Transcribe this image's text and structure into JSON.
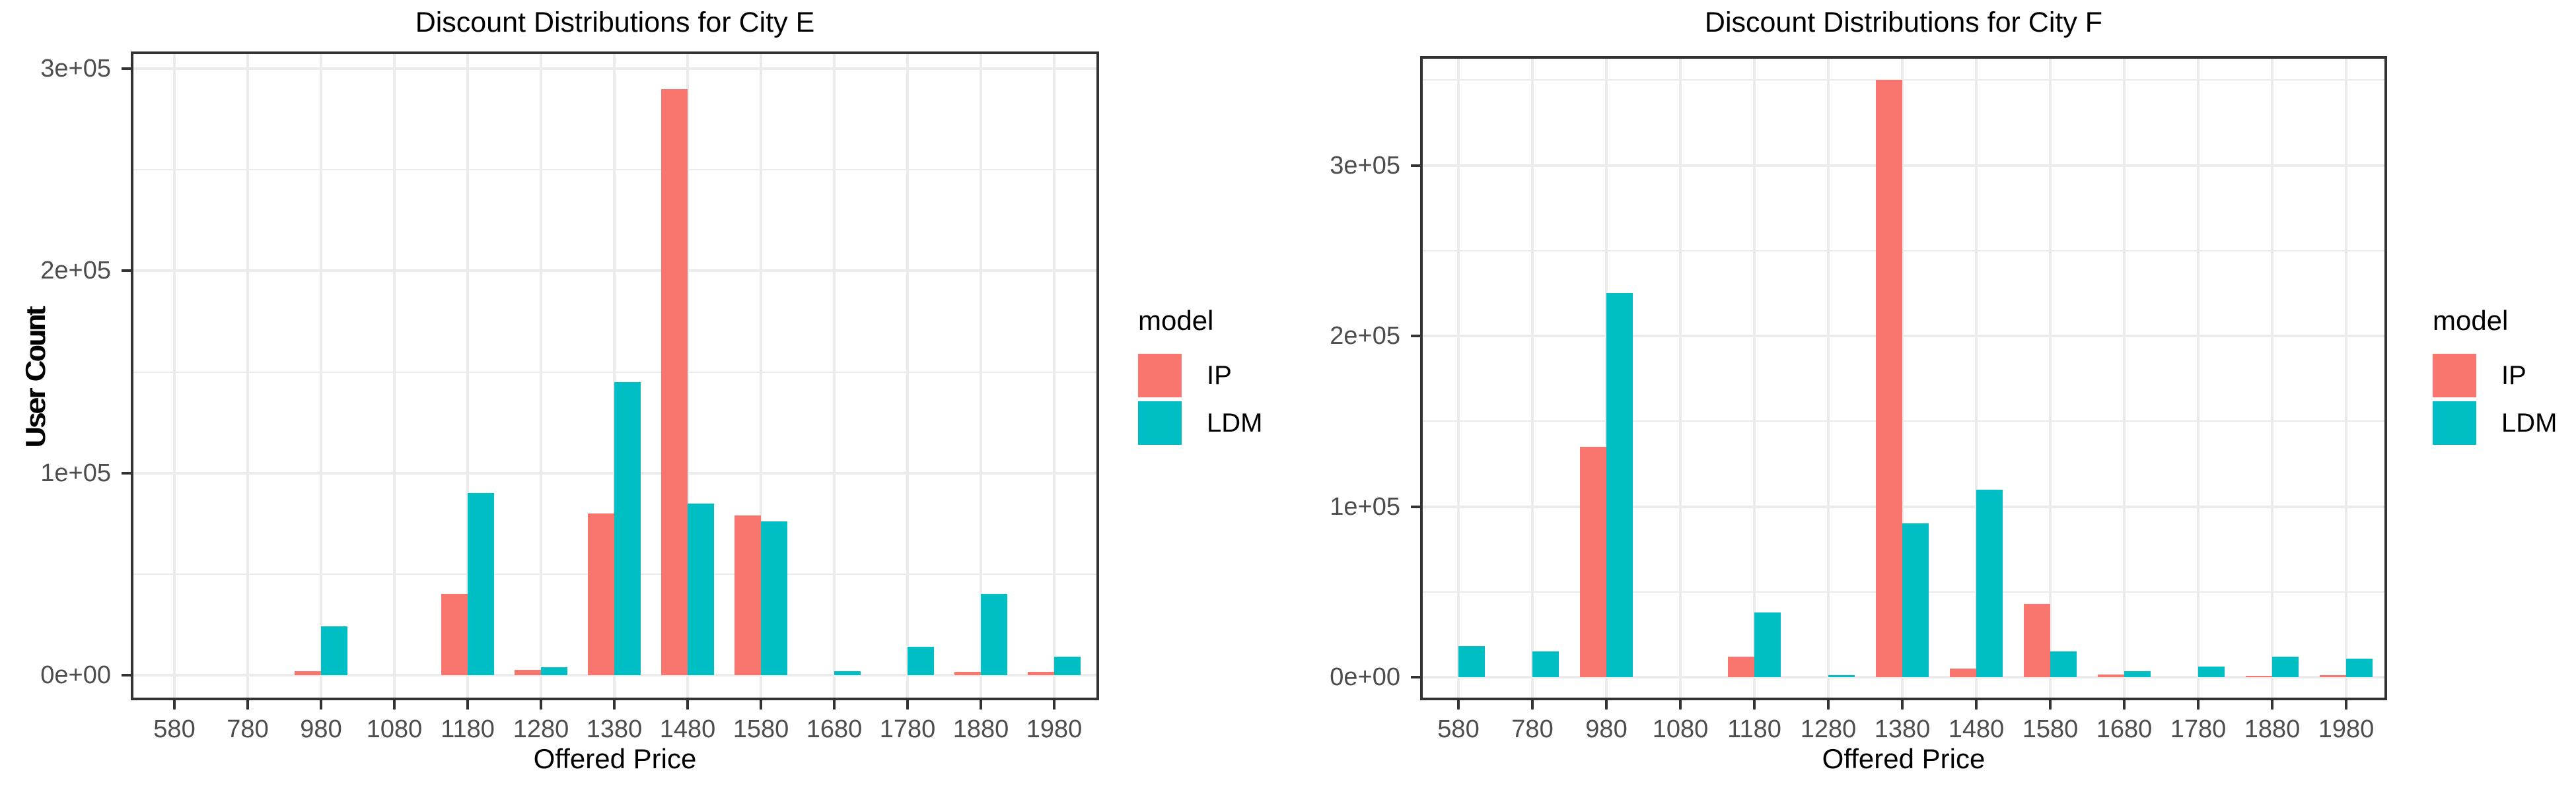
{
  "figure": {
    "background": "#ffffff",
    "grid_color": "#ebebeb",
    "panel_border_color": "#333333",
    "tick_color": "#333333",
    "tick_label_color": "#4d4d4d",
    "text_color": "#000000"
  },
  "chart_data": [
    {
      "type": "bar",
      "title": "Discount Distributions for City E",
      "xlabel": "Offered Price",
      "ylabel": "User Count",
      "legend": {
        "title": "model",
        "position": "right"
      },
      "categories": [
        "580",
        "780",
        "980",
        "1080",
        "1180",
        "1280",
        "1380",
        "1480",
        "1580",
        "1680",
        "1780",
        "1880",
        "1980"
      ],
      "series": [
        {
          "name": "IP",
          "color": "#F8766D",
          "values": [
            0,
            0,
            2000,
            0,
            40000,
            2500,
            80000,
            290000,
            79000,
            0,
            0,
            1500,
            1500
          ]
        },
        {
          "name": "LDM",
          "color": "#00BFC4",
          "values": [
            0,
            0,
            24000,
            0,
            90000,
            4000,
            145000,
            85000,
            76000,
            2000,
            14000,
            40000,
            9000
          ]
        }
      ],
      "y_ticks": [
        {
          "label": "0e+00",
          "value": 0
        },
        {
          "label": "1e+05",
          "value": 100000
        },
        {
          "label": "2e+05",
          "value": 200000
        },
        {
          "label": "3e+05",
          "value": 300000
        }
      ],
      "ylim": [
        0,
        308000
      ],
      "grid": {
        "major": true,
        "minor": true,
        "minor_step": 50000
      }
    },
    {
      "type": "bar",
      "title": "Discount Distributions for City F",
      "xlabel": "Offered Price",
      "ylabel": "User Count",
      "legend": {
        "title": "model",
        "position": "right"
      },
      "categories": [
        "580",
        "780",
        "980",
        "1080",
        "1180",
        "1280",
        "1380",
        "1480",
        "1580",
        "1680",
        "1780",
        "1880",
        "1980"
      ],
      "series": [
        {
          "name": "IP",
          "color": "#F8766D",
          "values": [
            0,
            0,
            135000,
            0,
            12000,
            0,
            350000,
            5000,
            43000,
            1500,
            0,
            800,
            1000
          ]
        },
        {
          "name": "LDM",
          "color": "#00BFC4",
          "values": [
            18000,
            15000,
            225000,
            0,
            38000,
            1000,
            90000,
            110000,
            15000,
            3500,
            6000,
            12000,
            11000
          ]
        }
      ],
      "y_ticks": [
        {
          "label": "0e+00",
          "value": 0
        },
        {
          "label": "1e+05",
          "value": 100000
        },
        {
          "label": "2e+05",
          "value": 200000
        },
        {
          "label": "3e+05",
          "value": 300000
        }
      ],
      "ylim": [
        0,
        364000
      ],
      "grid": {
        "major": true,
        "minor": true,
        "minor_step": 50000
      }
    }
  ]
}
